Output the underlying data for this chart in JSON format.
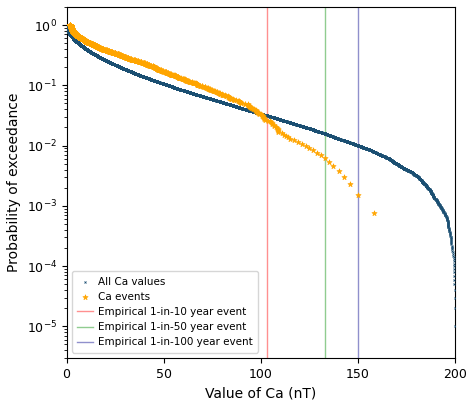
{
  "title": "",
  "xlabel": "Value of Ca (nT)",
  "ylabel": "Probability of exceedance",
  "xlim": [
    0,
    200
  ],
  "ylim": [
    3e-06,
    2.0
  ],
  "vline_10yr": {
    "x": 103,
    "color": "#FF9090",
    "label": "Empirical 1-in-10 year event"
  },
  "vline_50yr": {
    "x": 133,
    "color": "#90CC90",
    "label": "Empirical 1-in-50 year event"
  },
  "vline_100yr": {
    "x": 150,
    "color": "#9090CC",
    "label": "Empirical 1-in-100 year event"
  },
  "all_ca_color": "#1B4F72",
  "ca_events_color": "#FFA500",
  "legend_loc": "lower left",
  "figsize": [
    4.74,
    4.07
  ],
  "dpi": 100
}
